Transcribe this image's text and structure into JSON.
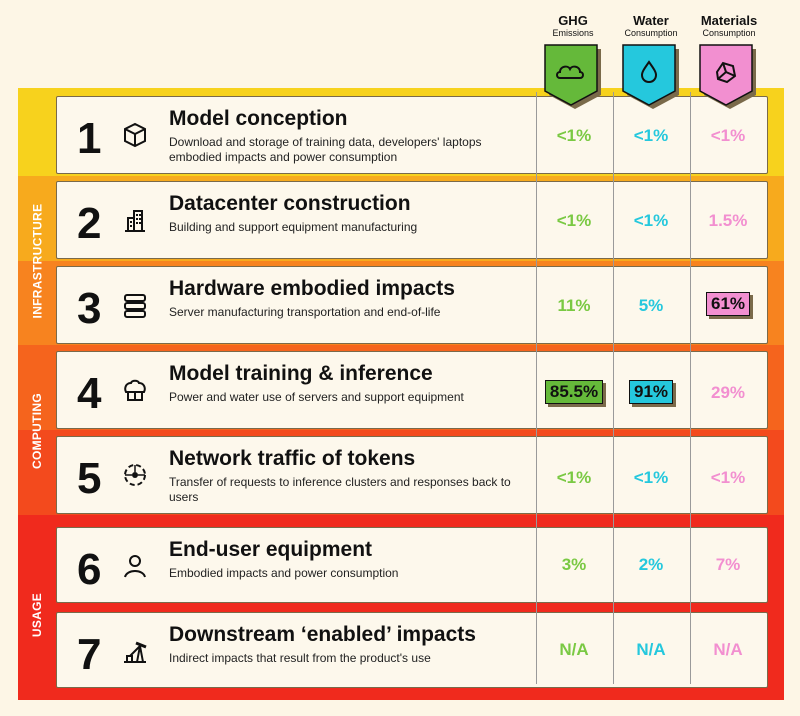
{
  "sections": {
    "infrastructure": "INFRASTRUCTURE",
    "computing": "COMPUTING",
    "usage": "USAGE"
  },
  "columns": [
    {
      "title": "GHG",
      "subtitle": "Emissions",
      "icon": "cloud-icon",
      "color": "#65b93a"
    },
    {
      "title": "Water",
      "subtitle": "Consumption",
      "icon": "water-drop-icon",
      "color": "#25c8dd"
    },
    {
      "title": "Materials",
      "subtitle": "Consumption",
      "icon": "rock-icon",
      "color": "#f28fd0"
    }
  ],
  "rows": [
    {
      "number": "1",
      "title": "Model conception",
      "description": "Download and storage of training data, developers' laptops embodied impacts and power consumption",
      "icon": "cube-icon",
      "ghg": "<1%",
      "water": "<1%",
      "materials": "<1%"
    },
    {
      "number": "2",
      "title": "Datacenter construction",
      "description": "Building and support equipment manufacturing",
      "icon": "building-icon",
      "ghg": "<1%",
      "water": "<1%",
      "materials": "1.5%"
    },
    {
      "number": "3",
      "title": "Hardware embodied impacts",
      "description": "Server manufacturing transportation and end-of-life",
      "icon": "server-icon",
      "ghg": "11%",
      "water": "5%",
      "materials": "61%"
    },
    {
      "number": "4",
      "title": "Model training & inference",
      "description": "Power and water use of servers and support equipment",
      "icon": "brain-icon",
      "ghg": "85.5%",
      "water": "91%",
      "materials": "29%"
    },
    {
      "number": "5",
      "title": "Network traffic of tokens",
      "description": "Transfer of requests to inference clusters and responses back to users",
      "icon": "network-icon",
      "ghg": "<1%",
      "water": "<1%",
      "materials": "<1%"
    },
    {
      "number": "6",
      "title": "End-user equipment",
      "description": "Embodied impacts and power consumption",
      "icon": "user-icon",
      "ghg": "3%",
      "water": "2%",
      "materials": "7%"
    },
    {
      "number": "7",
      "title": "Downstream ‘enabled’ impacts",
      "description": "Indirect impacts that result from the product's use",
      "icon": "oil-pump-icon",
      "ghg": "N/A",
      "water": "N/A",
      "materials": "N/A"
    }
  ]
}
